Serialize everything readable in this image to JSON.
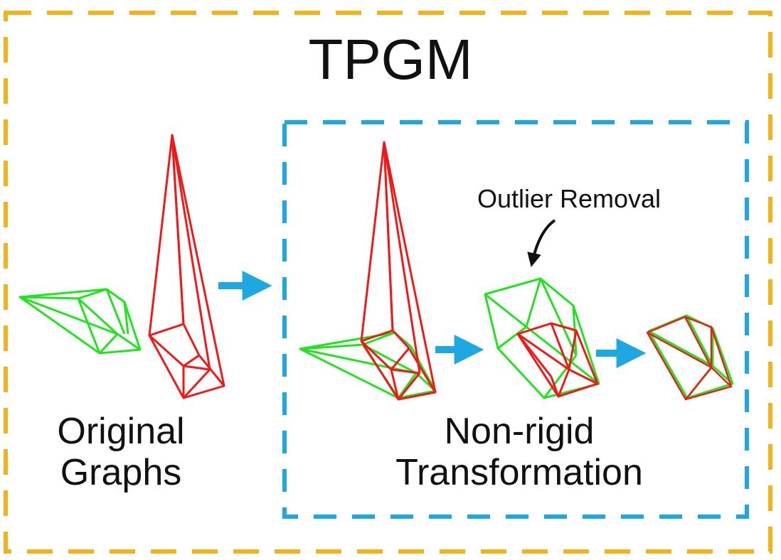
{
  "title": "TPGM",
  "original_graphs": {
    "label_line1": "Original",
    "label_line2": "Graphs"
  },
  "non_rigid": {
    "label_line1": "Non-rigid",
    "label_line2": "Transformation"
  },
  "annotation": {
    "text": "Outlier Removal"
  },
  "colors": {
    "outer_box": "#F2B21B",
    "inner_box": "#1EA7E1",
    "arrow": "#1EA7E1",
    "graph_green": "#22E222",
    "graph_red": "#EE1A1A",
    "text": "#111111"
  }
}
